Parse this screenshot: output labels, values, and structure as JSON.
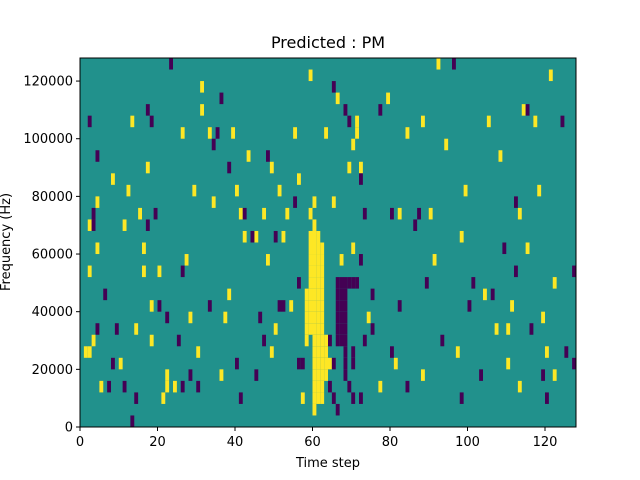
{
  "chart_data": {
    "type": "heatmap",
    "title": "Predicted : PM",
    "xlabel": "Time step",
    "ylabel": "Frequency (Hz)",
    "xlim": [
      0,
      128
    ],
    "ylim": [
      0,
      128000
    ],
    "x_ticks": [
      0,
      20,
      40,
      60,
      80,
      100,
      120
    ],
    "y_ticks": [
      0,
      20000,
      40000,
      60000,
      80000,
      100000,
      120000
    ],
    "y_tick_labels": [
      "0",
      "20000",
      "40000",
      "60000",
      "80000",
      "100000",
      "120000"
    ],
    "grid": false,
    "colors": {
      "background": "#21918c",
      "high": "#fde725",
      "low": "#440154"
    },
    "cell_size": {
      "time": 1,
      "frequency": 4000
    },
    "high_cells": [
      [
        60,
        4000
      ],
      [
        60,
        8000
      ],
      [
        60,
        12000
      ],
      [
        60,
        16000
      ],
      [
        60,
        20000
      ],
      [
        60,
        24000
      ],
      [
        60,
        28000
      ],
      [
        60,
        32000
      ],
      [
        60,
        36000
      ],
      [
        60,
        40000
      ],
      [
        60,
        44000
      ],
      [
        60,
        48000
      ],
      [
        60,
        52000
      ],
      [
        60,
        56000
      ],
      [
        60,
        60000
      ],
      [
        60,
        64000
      ],
      [
        61,
        8000
      ],
      [
        61,
        12000
      ],
      [
        61,
        16000
      ],
      [
        61,
        20000
      ],
      [
        61,
        24000
      ],
      [
        61,
        28000
      ],
      [
        61,
        32000
      ],
      [
        61,
        36000
      ],
      [
        61,
        40000
      ],
      [
        61,
        44000
      ],
      [
        61,
        48000
      ],
      [
        61,
        52000
      ],
      [
        61,
        56000
      ],
      [
        61,
        60000
      ],
      [
        61,
        64000
      ],
      [
        62,
        8000
      ],
      [
        62,
        12000
      ],
      [
        62,
        16000
      ],
      [
        62,
        20000
      ],
      [
        62,
        24000
      ],
      [
        62,
        28000
      ],
      [
        62,
        32000
      ],
      [
        62,
        36000
      ],
      [
        62,
        40000
      ],
      [
        62,
        44000
      ],
      [
        62,
        48000
      ],
      [
        62,
        52000
      ],
      [
        62,
        56000
      ],
      [
        62,
        60000
      ],
      [
        59,
        32000
      ],
      [
        59,
        36000
      ],
      [
        59,
        40000
      ],
      [
        59,
        44000
      ],
      [
        59,
        48000
      ],
      [
        59,
        52000
      ],
      [
        59,
        56000
      ],
      [
        59,
        60000
      ],
      [
        59,
        64000
      ],
      [
        58,
        32000
      ],
      [
        58,
        36000
      ],
      [
        58,
        40000
      ],
      [
        58,
        44000
      ],
      [
        63,
        16000
      ],
      [
        63,
        20000
      ],
      [
        63,
        24000
      ],
      [
        63,
        28000
      ],
      [
        1,
        24000
      ],
      [
        2,
        24000
      ],
      [
        3,
        28000
      ],
      [
        2,
        52000
      ],
      [
        2,
        68000
      ],
      [
        4,
        76000
      ],
      [
        4,
        60000
      ],
      [
        5,
        12000
      ],
      [
        8,
        84000
      ],
      [
        10,
        20000
      ],
      [
        11,
        68000
      ],
      [
        12,
        80000
      ],
      [
        13,
        104000
      ],
      [
        14,
        32000
      ],
      [
        15,
        72000
      ],
      [
        16,
        52000
      ],
      [
        16,
        60000
      ],
      [
        17,
        88000
      ],
      [
        18,
        28000
      ],
      [
        18,
        40000
      ],
      [
        20,
        52000
      ],
      [
        21,
        8000
      ],
      [
        22,
        12000
      ],
      [
        22,
        16000
      ],
      [
        24,
        12000
      ],
      [
        26,
        100000
      ],
      [
        27,
        56000
      ],
      [
        28,
        36000
      ],
      [
        29,
        80000
      ],
      [
        30,
        24000
      ],
      [
        31,
        116000
      ],
      [
        31,
        108000
      ],
      [
        33,
        100000
      ],
      [
        34,
        76000
      ],
      [
        36,
        16000
      ],
      [
        37,
        36000
      ],
      [
        38,
        44000
      ],
      [
        39,
        100000
      ],
      [
        40,
        80000
      ],
      [
        41,
        72000
      ],
      [
        42,
        64000
      ],
      [
        43,
        92000
      ],
      [
        45,
        64000
      ],
      [
        47,
        72000
      ],
      [
        48,
        56000
      ],
      [
        49,
        88000
      ],
      [
        49,
        24000
      ],
      [
        50,
        32000
      ],
      [
        51,
        80000
      ],
      [
        52,
        64000
      ],
      [
        53,
        72000
      ],
      [
        54,
        40000
      ],
      [
        55,
        100000
      ],
      [
        56,
        84000
      ],
      [
        57,
        8000
      ],
      [
        58,
        28000
      ],
      [
        59,
        72000
      ],
      [
        59,
        120000
      ],
      [
        60,
        76000
      ],
      [
        60,
        68000
      ],
      [
        63,
        100000
      ],
      [
        64,
        20000
      ],
      [
        65,
        76000
      ],
      [
        66,
        112000
      ],
      [
        67,
        56000
      ],
      [
        69,
        88000
      ],
      [
        70,
        60000
      ],
      [
        71,
        100000
      ],
      [
        70,
        96000
      ],
      [
        71,
        104000
      ],
      [
        72,
        88000
      ],
      [
        74,
        36000
      ],
      [
        77,
        12000
      ],
      [
        79,
        112000
      ],
      [
        81,
        20000
      ],
      [
        82,
        72000
      ],
      [
        84,
        100000
      ],
      [
        88,
        16000
      ],
      [
        88,
        104000
      ],
      [
        90,
        72000
      ],
      [
        91,
        56000
      ],
      [
        92,
        124000
      ],
      [
        94,
        96000
      ],
      [
        97,
        24000
      ],
      [
        98,
        64000
      ],
      [
        99,
        80000
      ],
      [
        104,
        44000
      ],
      [
        105,
        104000
      ],
      [
        107,
        32000
      ],
      [
        108,
        92000
      ],
      [
        110,
        20000
      ],
      [
        110,
        32000
      ],
      [
        111,
        40000
      ],
      [
        113,
        72000
      ],
      [
        113,
        12000
      ],
      [
        114,
        108000
      ],
      [
        115,
        60000
      ],
      [
        117,
        104000
      ],
      [
        118,
        80000
      ],
      [
        119,
        36000
      ],
      [
        120,
        24000
      ],
      [
        121,
        120000
      ],
      [
        122,
        16000
      ],
      [
        122,
        48000
      ]
    ],
    "low_cells": [
      [
        66,
        28000
      ],
      [
        66,
        32000
      ],
      [
        66,
        36000
      ],
      [
        66,
        40000
      ],
      [
        66,
        44000
      ],
      [
        66,
        48000
      ],
      [
        67,
        28000
      ],
      [
        67,
        32000
      ],
      [
        67,
        36000
      ],
      [
        67,
        40000
      ],
      [
        67,
        44000
      ],
      [
        67,
        48000
      ],
      [
        68,
        16000
      ],
      [
        68,
        20000
      ],
      [
        68,
        24000
      ],
      [
        68,
        28000
      ],
      [
        68,
        32000
      ],
      [
        68,
        36000
      ],
      [
        68,
        40000
      ],
      [
        68,
        44000
      ],
      [
        68,
        48000
      ],
      [
        69,
        48000
      ],
      [
        70,
        48000
      ],
      [
        71,
        48000
      ],
      [
        70,
        20000
      ],
      [
        70,
        24000
      ],
      [
        69,
        12000
      ],
      [
        70,
        8000
      ],
      [
        65,
        8000
      ],
      [
        66,
        4000
      ],
      [
        65,
        20000
      ],
      [
        64,
        12000
      ],
      [
        3,
        72000
      ],
      [
        3,
        68000
      ],
      [
        2,
        104000
      ],
      [
        4,
        92000
      ],
      [
        4,
        32000
      ],
      [
        6,
        44000
      ],
      [
        7,
        12000
      ],
      [
        8,
        20000
      ],
      [
        9,
        32000
      ],
      [
        11,
        12000
      ],
      [
        13,
        0
      ],
      [
        14,
        8000
      ],
      [
        17,
        108000
      ],
      [
        18,
        104000
      ],
      [
        17,
        68000
      ],
      [
        19,
        72000
      ],
      [
        20,
        40000
      ],
      [
        22,
        36000
      ],
      [
        23,
        124000
      ],
      [
        25,
        28000
      ],
      [
        26,
        52000
      ],
      [
        26,
        12000
      ],
      [
        28,
        16000
      ],
      [
        30,
        12000
      ],
      [
        33,
        40000
      ],
      [
        35,
        100000
      ],
      [
        36,
        112000
      ],
      [
        34,
        96000
      ],
      [
        38,
        88000
      ],
      [
        40,
        20000
      ],
      [
        41,
        8000
      ],
      [
        42,
        72000
      ],
      [
        44,
        64000
      ],
      [
        45,
        16000
      ],
      [
        46,
        36000
      ],
      [
        47,
        28000
      ],
      [
        48,
        92000
      ],
      [
        50,
        64000
      ],
      [
        51,
        40000
      ],
      [
        52,
        40000
      ],
      [
        55,
        76000
      ],
      [
        56,
        48000
      ],
      [
        56,
        20000
      ],
      [
        57,
        20000
      ],
      [
        64,
        28000
      ],
      [
        65,
        116000
      ],
      [
        68,
        108000
      ],
      [
        69,
        104000
      ],
      [
        72,
        84000
      ],
      [
        72,
        56000
      ],
      [
        72,
        8000
      ],
      [
        73,
        72000
      ],
      [
        73,
        28000
      ],
      [
        75,
        44000
      ],
      [
        75,
        32000
      ],
      [
        77,
        108000
      ],
      [
        80,
        72000
      ],
      [
        80,
        24000
      ],
      [
        82,
        40000
      ],
      [
        84,
        12000
      ],
      [
        86,
        68000
      ],
      [
        87,
        72000
      ],
      [
        89,
        48000
      ],
      [
        93,
        28000
      ],
      [
        96,
        124000
      ],
      [
        98,
        8000
      ],
      [
        100,
        40000
      ],
      [
        101,
        48000
      ],
      [
        103,
        16000
      ],
      [
        106,
        44000
      ],
      [
        109,
        60000
      ],
      [
        112,
        76000
      ],
      [
        112,
        52000
      ],
      [
        115,
        108000
      ],
      [
        116,
        32000
      ],
      [
        119,
        16000
      ],
      [
        120,
        8000
      ],
      [
        124,
        104000
      ],
      [
        125,
        24000
      ],
      [
        127,
        20000
      ],
      [
        127,
        52000
      ]
    ]
  }
}
